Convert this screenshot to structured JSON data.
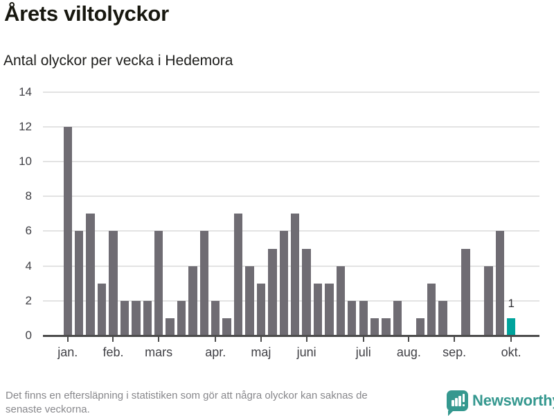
{
  "header": {
    "title": "Årets viltolyckor",
    "subtitle": "Antal olyckor per vecka i Hedemora"
  },
  "chart_data": {
    "type": "bar",
    "title": "Årets viltolyckor",
    "subtitle": "Antal olyckor per vecka i Hedemora",
    "x_unit": "vecka",
    "values": [
      12,
      6,
      7,
      3,
      6,
      2,
      2,
      2,
      6,
      1,
      2,
      4,
      6,
      2,
      1,
      7,
      4,
      3,
      5,
      6,
      7,
      5,
      3,
      3,
      4,
      2,
      2,
      1,
      1,
      2,
      0,
      1,
      3,
      2,
      0,
      5,
      0,
      4,
      6,
      1
    ],
    "x_tick_labels": [
      "jan.",
      "feb.",
      "mars",
      "apr.",
      "maj",
      "juni",
      "juli",
      "aug.",
      "sep.",
      "okt."
    ],
    "x_tick_positions": [
      0,
      4,
      8,
      13,
      17,
      21,
      26,
      30,
      34,
      39
    ],
    "yticks": [
      0,
      2,
      4,
      6,
      8,
      10,
      12,
      14
    ],
    "ylim": [
      0,
      14
    ],
    "grid": true,
    "legend": false,
    "bar_color": "#6f6c73",
    "highlight_color": "#00a39c",
    "highlight_index": 39,
    "highlight_label": "1"
  },
  "footer": {
    "note_lines": [
      "Det finns en eftersläpning i statistiken som gör att några olyckor kan saknas de",
      "senaste veckorna."
    ],
    "brand": "Newsworthy",
    "brand_color": "#35988f",
    "logo_icon": "bar-chart-speech-bubble"
  }
}
